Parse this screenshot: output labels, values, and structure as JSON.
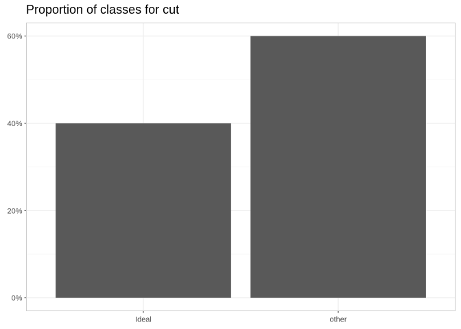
{
  "chart_data": {
    "type": "bar",
    "title": "Proportion of classes for cut",
    "xlabel": "",
    "ylabel": "",
    "categories": [
      "Ideal",
      "other"
    ],
    "values": [
      0.4,
      0.6
    ],
    "ylim": [
      0,
      0.6
    ],
    "y_ticks": [
      {
        "value": 0,
        "label": "0%"
      },
      {
        "value": 0.2,
        "label": "20%"
      },
      {
        "value": 0.4,
        "label": "40%"
      },
      {
        "value": 0.6,
        "label": "60%"
      }
    ],
    "grid": true,
    "legend": "none",
    "colors": {
      "bar": "#595959",
      "grid_major": "#ebebeb",
      "grid_minor": "#f5f5f5",
      "panel_border": "#cccccc",
      "tick_text": "#4d4d4d"
    }
  }
}
